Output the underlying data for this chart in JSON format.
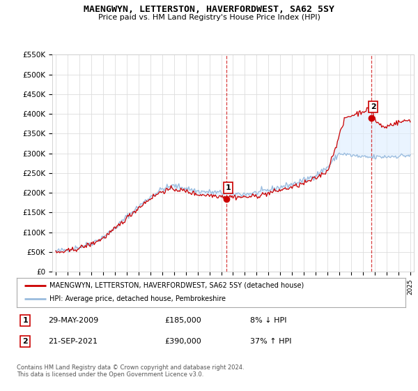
{
  "title": "MAENGWYN, LETTERSTON, HAVERFORDWEST, SA62 5SY",
  "subtitle": "Price paid vs. HM Land Registry's House Price Index (HPI)",
  "legend_line1": "MAENGWYN, LETTERSTON, HAVERFORDWEST, SA62 5SY (detached house)",
  "legend_line2": "HPI: Average price, detached house, Pembrokeshire",
  "point1_label": "1",
  "point1_date": "29-MAY-2009",
  "point1_price": "£185,000",
  "point1_hpi": "8% ↓ HPI",
  "point2_label": "2",
  "point2_date": "21-SEP-2021",
  "point2_price": "£390,000",
  "point2_hpi": "37% ↑ HPI",
  "footnote": "Contains HM Land Registry data © Crown copyright and database right 2024.\nThis data is licensed under the Open Government Licence v3.0.",
  "red_color": "#cc0000",
  "blue_color": "#99bbdd",
  "fill_color": "#ddeeff",
  "point1_x": 2009.42,
  "point1_y": 185000,
  "point2_x": 2021.72,
  "point2_y": 390000,
  "background_color": "#ffffff",
  "grid_color": "#dddddd",
  "ylim": [
    0,
    550000
  ],
  "xlim_left": 1994.7,
  "xlim_right": 2025.3
}
